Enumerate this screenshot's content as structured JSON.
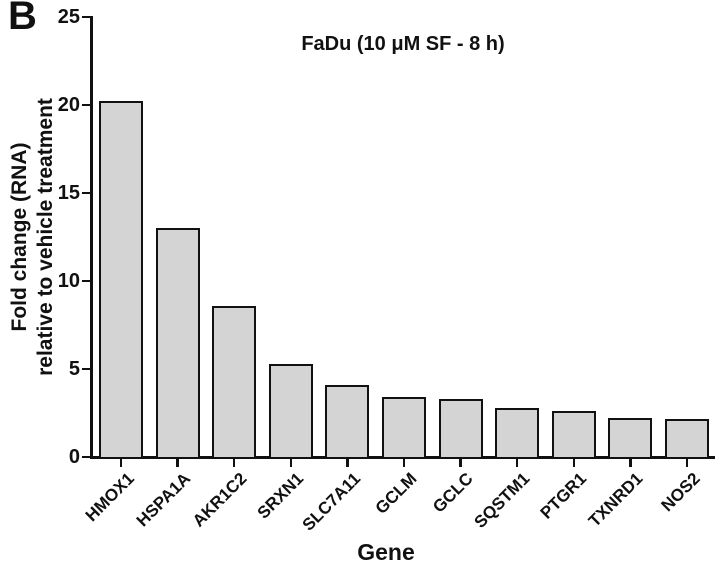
{
  "panel_label": "B",
  "chart_data": {
    "type": "bar",
    "title": "FaDu (10 μM SF - 8 h)",
    "xlabel": "Gene",
    "ylabel_line1": "Fold change (RNA)",
    "ylabel_line2": "relative to vehicle treatment",
    "categories": [
      "HMOX1",
      "HSPA1A",
      "AKR1C2",
      "SRXN1",
      "SLC7A11",
      "GCLM",
      "GCLC",
      "SQSTM1",
      "PTGR1",
      "TXNRD1",
      "NOS2"
    ],
    "values": [
      20.2,
      13.0,
      8.6,
      5.3,
      4.1,
      3.4,
      3.3,
      2.8,
      2.6,
      2.2,
      2.15
    ],
    "ylim": [
      0,
      25
    ],
    "yticks": [
      0,
      5,
      10,
      15,
      20,
      25
    ],
    "bar_fill": "#d4d4d4",
    "bar_border": "#111111",
    "axis_color": "#111111",
    "grid": "off",
    "legend": "none"
  }
}
